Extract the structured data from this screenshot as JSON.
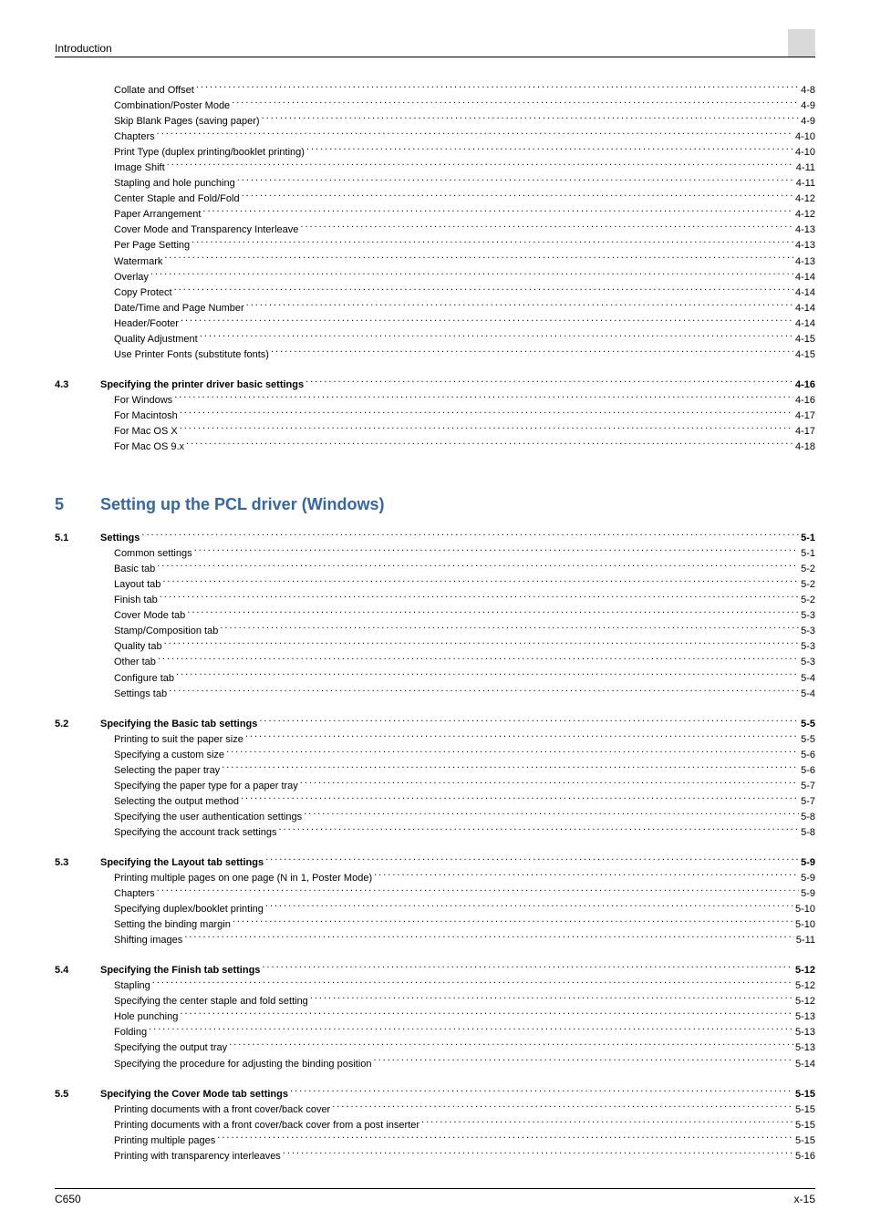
{
  "header": {
    "title": "Introduction"
  },
  "footer": {
    "left": "C650",
    "right": "x-15"
  },
  "sections_top": [
    {
      "label": "Collate and Offset",
      "page": "4-8"
    },
    {
      "label": "Combination/Poster Mode",
      "page": "4-9"
    },
    {
      "label": "Skip Blank Pages (saving paper)",
      "page": "4-9"
    },
    {
      "label": "Chapters",
      "page": "4-10"
    },
    {
      "label": "Print Type (duplex printing/booklet printing)",
      "page": "4-10"
    },
    {
      "label": "Image Shift",
      "page": "4-11"
    },
    {
      "label": "Stapling and hole punching",
      "page": "4-11"
    },
    {
      "label": "Center Staple and Fold/Fold",
      "page": "4-12"
    },
    {
      "label": "Paper Arrangement",
      "page": "4-12"
    },
    {
      "label": "Cover Mode and Transparency Interleave",
      "page": "4-13"
    },
    {
      "label": "Per Page Setting",
      "page": "4-13"
    },
    {
      "label": "Watermark",
      "page": "4-13"
    },
    {
      "label": "Overlay",
      "page": "4-14"
    },
    {
      "label": "Copy Protect",
      "page": "4-14"
    },
    {
      "label": "Date/Time and Page Number",
      "page": "4-14"
    },
    {
      "label": "Header/Footer",
      "page": "4-14"
    },
    {
      "label": "Quality Adjustment",
      "page": "4-15"
    },
    {
      "label": "Use Printer Fonts (substitute fonts)",
      "page": "4-15"
    }
  ],
  "section_4_3": {
    "num": "4.3",
    "title_row": {
      "label": "Specifying the printer driver basic settings",
      "page": "4-16"
    },
    "items": [
      {
        "label": "For Windows",
        "page": "4-16"
      },
      {
        "label": "For Macintosh",
        "page": "4-17"
      },
      {
        "label": "For Mac OS X",
        "page": "4-17"
      },
      {
        "label": "For Mac OS 9.x",
        "page": "4-18"
      }
    ]
  },
  "chapter5": {
    "num": "5",
    "title": "Setting up the PCL driver (Windows)"
  },
  "section_5_1": {
    "num": "5.1",
    "title_row": {
      "label": "Settings",
      "page": "5-1"
    },
    "items": [
      {
        "label": "Common settings",
        "page": "5-1"
      },
      {
        "label": "Basic tab",
        "page": "5-2"
      },
      {
        "label": "Layout tab",
        "page": "5-2"
      },
      {
        "label": "Finish tab",
        "page": "5-2"
      },
      {
        "label": "Cover Mode tab",
        "page": "5-3"
      },
      {
        "label": "Stamp/Composition tab",
        "page": "5-3"
      },
      {
        "label": "Quality tab",
        "page": "5-3"
      },
      {
        "label": "Other tab",
        "page": "5-3"
      },
      {
        "label": "Configure tab",
        "page": "5-4"
      },
      {
        "label": "Settings tab",
        "page": "5-4"
      }
    ]
  },
  "section_5_2": {
    "num": "5.2",
    "title_row": {
      "label": "Specifying the Basic tab settings",
      "page": "5-5"
    },
    "items": [
      {
        "label": "Printing to suit the paper size",
        "page": "5-5"
      },
      {
        "label": "Specifying a custom size",
        "page": "5-6"
      },
      {
        "label": "Selecting the paper tray",
        "page": "5-6"
      },
      {
        "label": "Specifying the paper type for a paper tray",
        "page": "5-7"
      },
      {
        "label": "Selecting the output method",
        "page": "5-7"
      },
      {
        "label": "Specifying the user authentication settings",
        "page": "5-8"
      },
      {
        "label": "Specifying the account track settings",
        "page": "5-8"
      }
    ]
  },
  "section_5_3": {
    "num": "5.3",
    "title_row": {
      "label": "Specifying the Layout tab settings",
      "page": "5-9"
    },
    "items": [
      {
        "label": "Printing multiple pages on one page (N in 1, Poster Mode)",
        "page": "5-9"
      },
      {
        "label": "Chapters",
        "page": "5-9"
      },
      {
        "label": "Specifying duplex/booklet printing",
        "page": "5-10"
      },
      {
        "label": "Setting the binding margin",
        "page": "5-10"
      },
      {
        "label": "Shifting images",
        "page": "5-11"
      }
    ]
  },
  "section_5_4": {
    "num": "5.4",
    "title_row": {
      "label": "Specifying the Finish tab settings",
      "page": "5-12"
    },
    "items": [
      {
        "label": "Stapling",
        "page": "5-12"
      },
      {
        "label": "Specifying the center staple and fold setting",
        "page": "5-12"
      },
      {
        "label": "Hole punching",
        "page": "5-13"
      },
      {
        "label": "Folding",
        "page": "5-13"
      },
      {
        "label": "Specifying the output tray",
        "page": "5-13"
      },
      {
        "label": "Specifying the procedure for adjusting the binding position",
        "page": "5-14"
      }
    ]
  },
  "section_5_5": {
    "num": "5.5",
    "title_row": {
      "label": "Specifying the Cover Mode tab settings",
      "page": "5-15"
    },
    "items": [
      {
        "label": "Printing documents with a front cover/back cover",
        "page": "5-15"
      },
      {
        "label": "Printing documents with a front cover/back cover from a post inserter",
        "page": "5-15"
      },
      {
        "label": "Printing multiple pages",
        "page": "5-15"
      },
      {
        "label": "Printing with transparency interleaves",
        "page": "5-16"
      }
    ]
  }
}
